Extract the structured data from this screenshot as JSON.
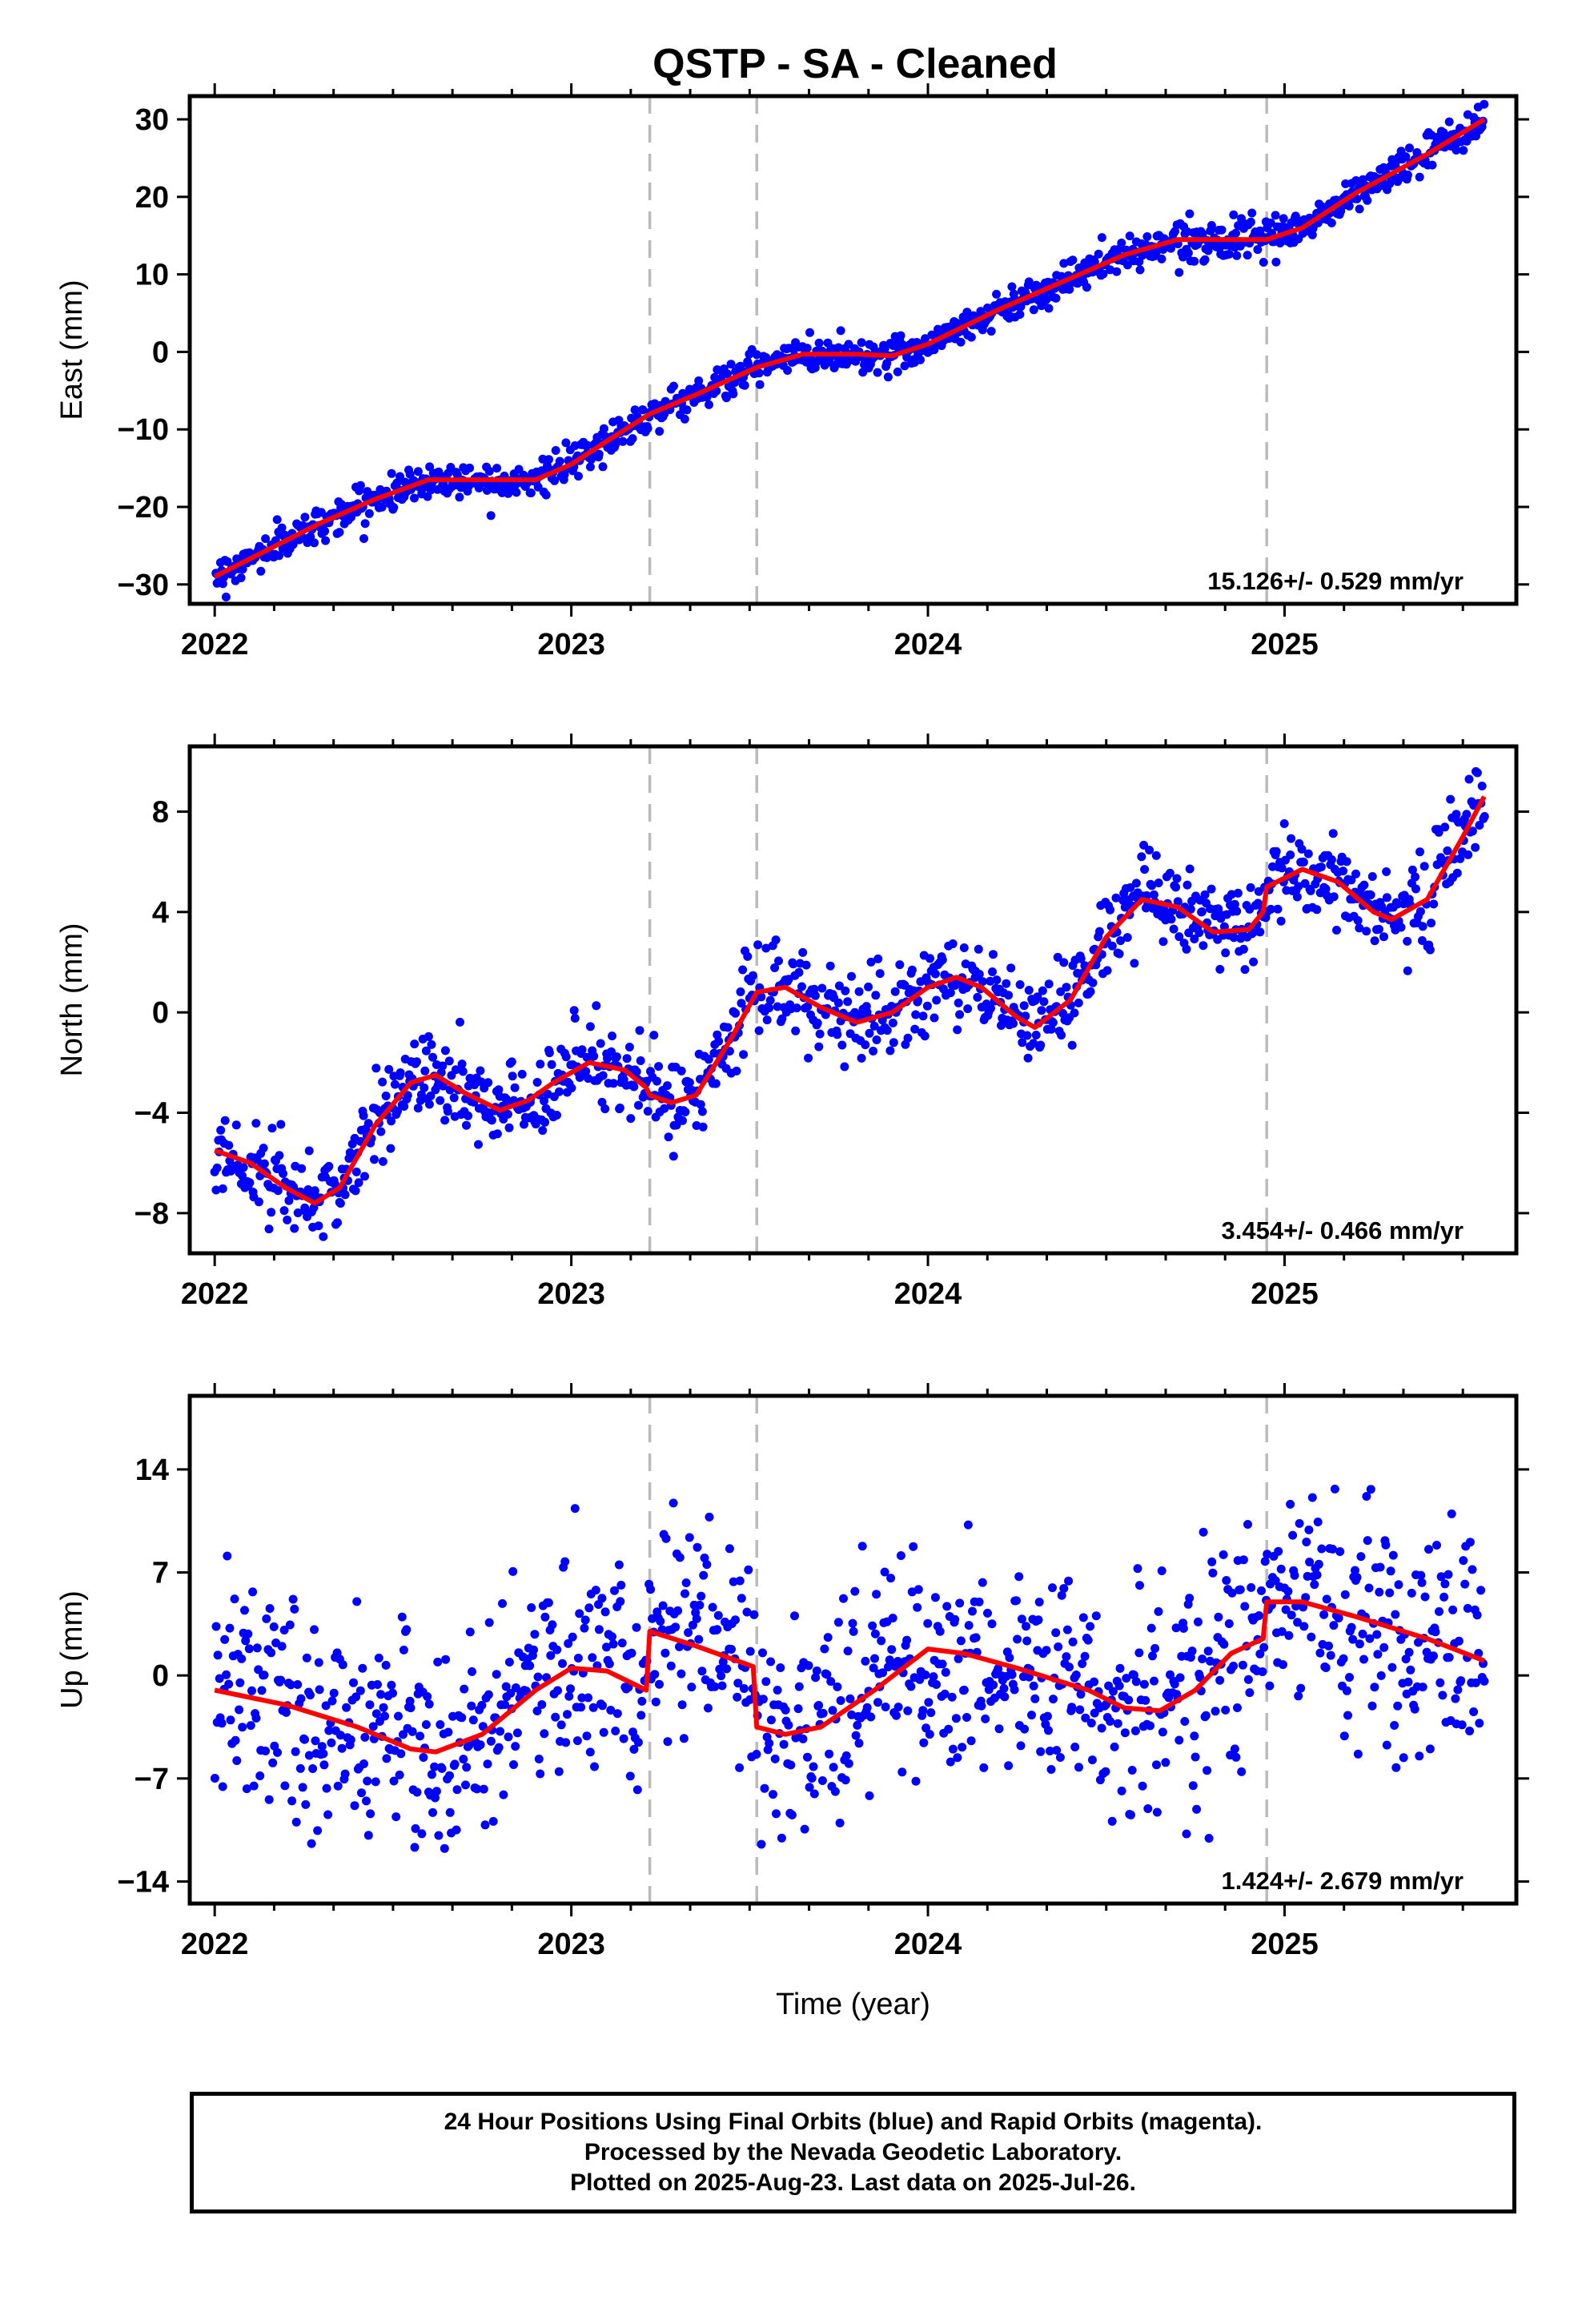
{
  "title": "QSTP  - SA - Cleaned",
  "footer": {
    "line1": "24 Hour Positions Using Final Orbits (blue) and Rapid Orbits (magenta).",
    "line2": "Processed by the Nevada Geodetic Laboratory.",
    "line3": "Plotted on 2025-Aug-23. Last data on 2025-Jul-26."
  },
  "colors": {
    "observations": "#0000ff",
    "model": "#ff0000",
    "equipment_change": "#bbbbbb",
    "frame": "#000000"
  },
  "chart_data": [
    {
      "type": "scatter",
      "ylabel": "East (mm)",
      "xlabel": "",
      "rate_label": "15.126+/- 0.529 mm/yr",
      "xlim": [
        2021.93,
        2025.65
      ],
      "ylim": [
        -32.5,
        33
      ],
      "xticks": [
        2022,
        2023,
        2024,
        2025
      ],
      "yticks": [
        -30,
        -20,
        -10,
        0,
        10,
        20,
        30
      ],
      "vlines": [
        2023.22,
        2023.52,
        2024.95
      ],
      "trend": {
        "x0": 2022.0,
        "y0": -29.0,
        "slope": 15.126
      },
      "model": {
        "x": [
          2022.0,
          2022.15,
          2022.3,
          2022.45,
          2022.6,
          2022.75,
          2022.9,
          2023.0,
          2023.1,
          2023.22,
          2023.35,
          2023.52,
          2023.65,
          2023.8,
          2023.9,
          2024.0,
          2024.2,
          2024.4,
          2024.55,
          2024.7,
          2024.85,
          2024.95,
          2025.05,
          2025.2,
          2025.4,
          2025.56
        ],
        "y": [
          -29,
          -25.5,
          -22,
          -19,
          -16.5,
          -16.5,
          -16.5,
          -14.5,
          -11.5,
          -8,
          -5.5,
          -2,
          -0.3,
          -0.3,
          -0.5,
          1,
          5.5,
          9.5,
          12.5,
          14.5,
          14.5,
          14.5,
          16,
          20.5,
          25.5,
          30
        ]
      },
      "noise_sd": 1.1,
      "n_points": 1100
    },
    {
      "type": "scatter",
      "ylabel": "North (mm)",
      "xlabel": "",
      "rate_label": "3.454+/- 0.466 mm/yr",
      "xlim": [
        2021.93,
        2025.65
      ],
      "ylim": [
        -9.6,
        10.6
      ],
      "xticks": [
        2022,
        2023,
        2024,
        2025
      ],
      "yticks": [
        -8,
        -4,
        0,
        4,
        8
      ],
      "vlines": [
        2023.22,
        2023.52,
        2024.95
      ],
      "trend": {
        "x0": 2022.0,
        "y0": -5.5,
        "slope": 3.454
      },
      "model": {
        "x": [
          2022.0,
          2022.1,
          2022.2,
          2022.28,
          2022.35,
          2022.45,
          2022.55,
          2022.62,
          2022.7,
          2022.8,
          2022.88,
          2022.95,
          2023.05,
          2023.15,
          2023.21,
          2023.22,
          2023.28,
          2023.35,
          2023.45,
          2023.52,
          2023.6,
          2023.7,
          2023.8,
          2023.9,
          2024.0,
          2024.08,
          2024.15,
          2024.25,
          2024.3,
          2024.4,
          2024.5,
          2024.6,
          2024.7,
          2024.8,
          2024.9,
          2024.94,
          2024.95,
          2025.05,
          2025.15,
          2025.25,
          2025.3,
          2025.4,
          2025.5,
          2025.56
        ],
        "y": [
          -5.5,
          -6,
          -7,
          -7.6,
          -7,
          -4.5,
          -2.8,
          -2.5,
          -3.2,
          -3.9,
          -3.5,
          -2.8,
          -2,
          -2.3,
          -3,
          -3.3,
          -3.6,
          -3.3,
          -1,
          0.8,
          1,
          0.2,
          -0.4,
          0,
          1,
          1.4,
          1,
          -0.2,
          -0.6,
          0.5,
          3,
          4.5,
          4.2,
          3.2,
          3.3,
          4,
          5,
          5.7,
          5.2,
          4,
          3.7,
          4.5,
          7,
          8.6
        ]
      },
      "noise_sd": 0.9,
      "n_points": 1100
    },
    {
      "type": "scatter",
      "ylabel": "Up (mm)",
      "xlabel": "Time (year)",
      "rate_label": "1.424+/- 2.679 mm/yr",
      "xlim": [
        2021.93,
        2025.65
      ],
      "ylim": [
        -15.5,
        19
      ],
      "xticks": [
        2022,
        2023,
        2024,
        2025
      ],
      "yticks": [
        -14,
        -7,
        0,
        7,
        14
      ],
      "vlines": [
        2023.22,
        2023.52,
        2024.95
      ],
      "trend": {
        "x0": 2022.0,
        "y0": -1.0,
        "slope": 1.424
      },
      "model": {
        "x": [
          2022.0,
          2022.2,
          2022.4,
          2022.55,
          2022.62,
          2022.75,
          2022.9,
          2023.0,
          2023.1,
          2023.21,
          2023.22,
          2023.35,
          2023.51,
          2023.52,
          2023.6,
          2023.7,
          2023.85,
          2024.0,
          2024.1,
          2024.25,
          2024.45,
          2024.55,
          2024.65,
          2024.75,
          2024.85,
          2024.94,
          2024.95,
          2025.05,
          2025.2,
          2025.4,
          2025.56
        ],
        "y": [
          -1,
          -2,
          -3.5,
          -5,
          -5.2,
          -4,
          -1,
          0.5,
          0.3,
          -1,
          3,
          2,
          0.6,
          -3.5,
          -4,
          -3.5,
          -1,
          1.8,
          1.5,
          0.5,
          -1,
          -2.2,
          -2.4,
          -1,
          1.5,
          2.5,
          5,
          5,
          4,
          2.5,
          1
        ]
      },
      "noise_sd": 3.7,
      "n_points": 1100
    }
  ]
}
